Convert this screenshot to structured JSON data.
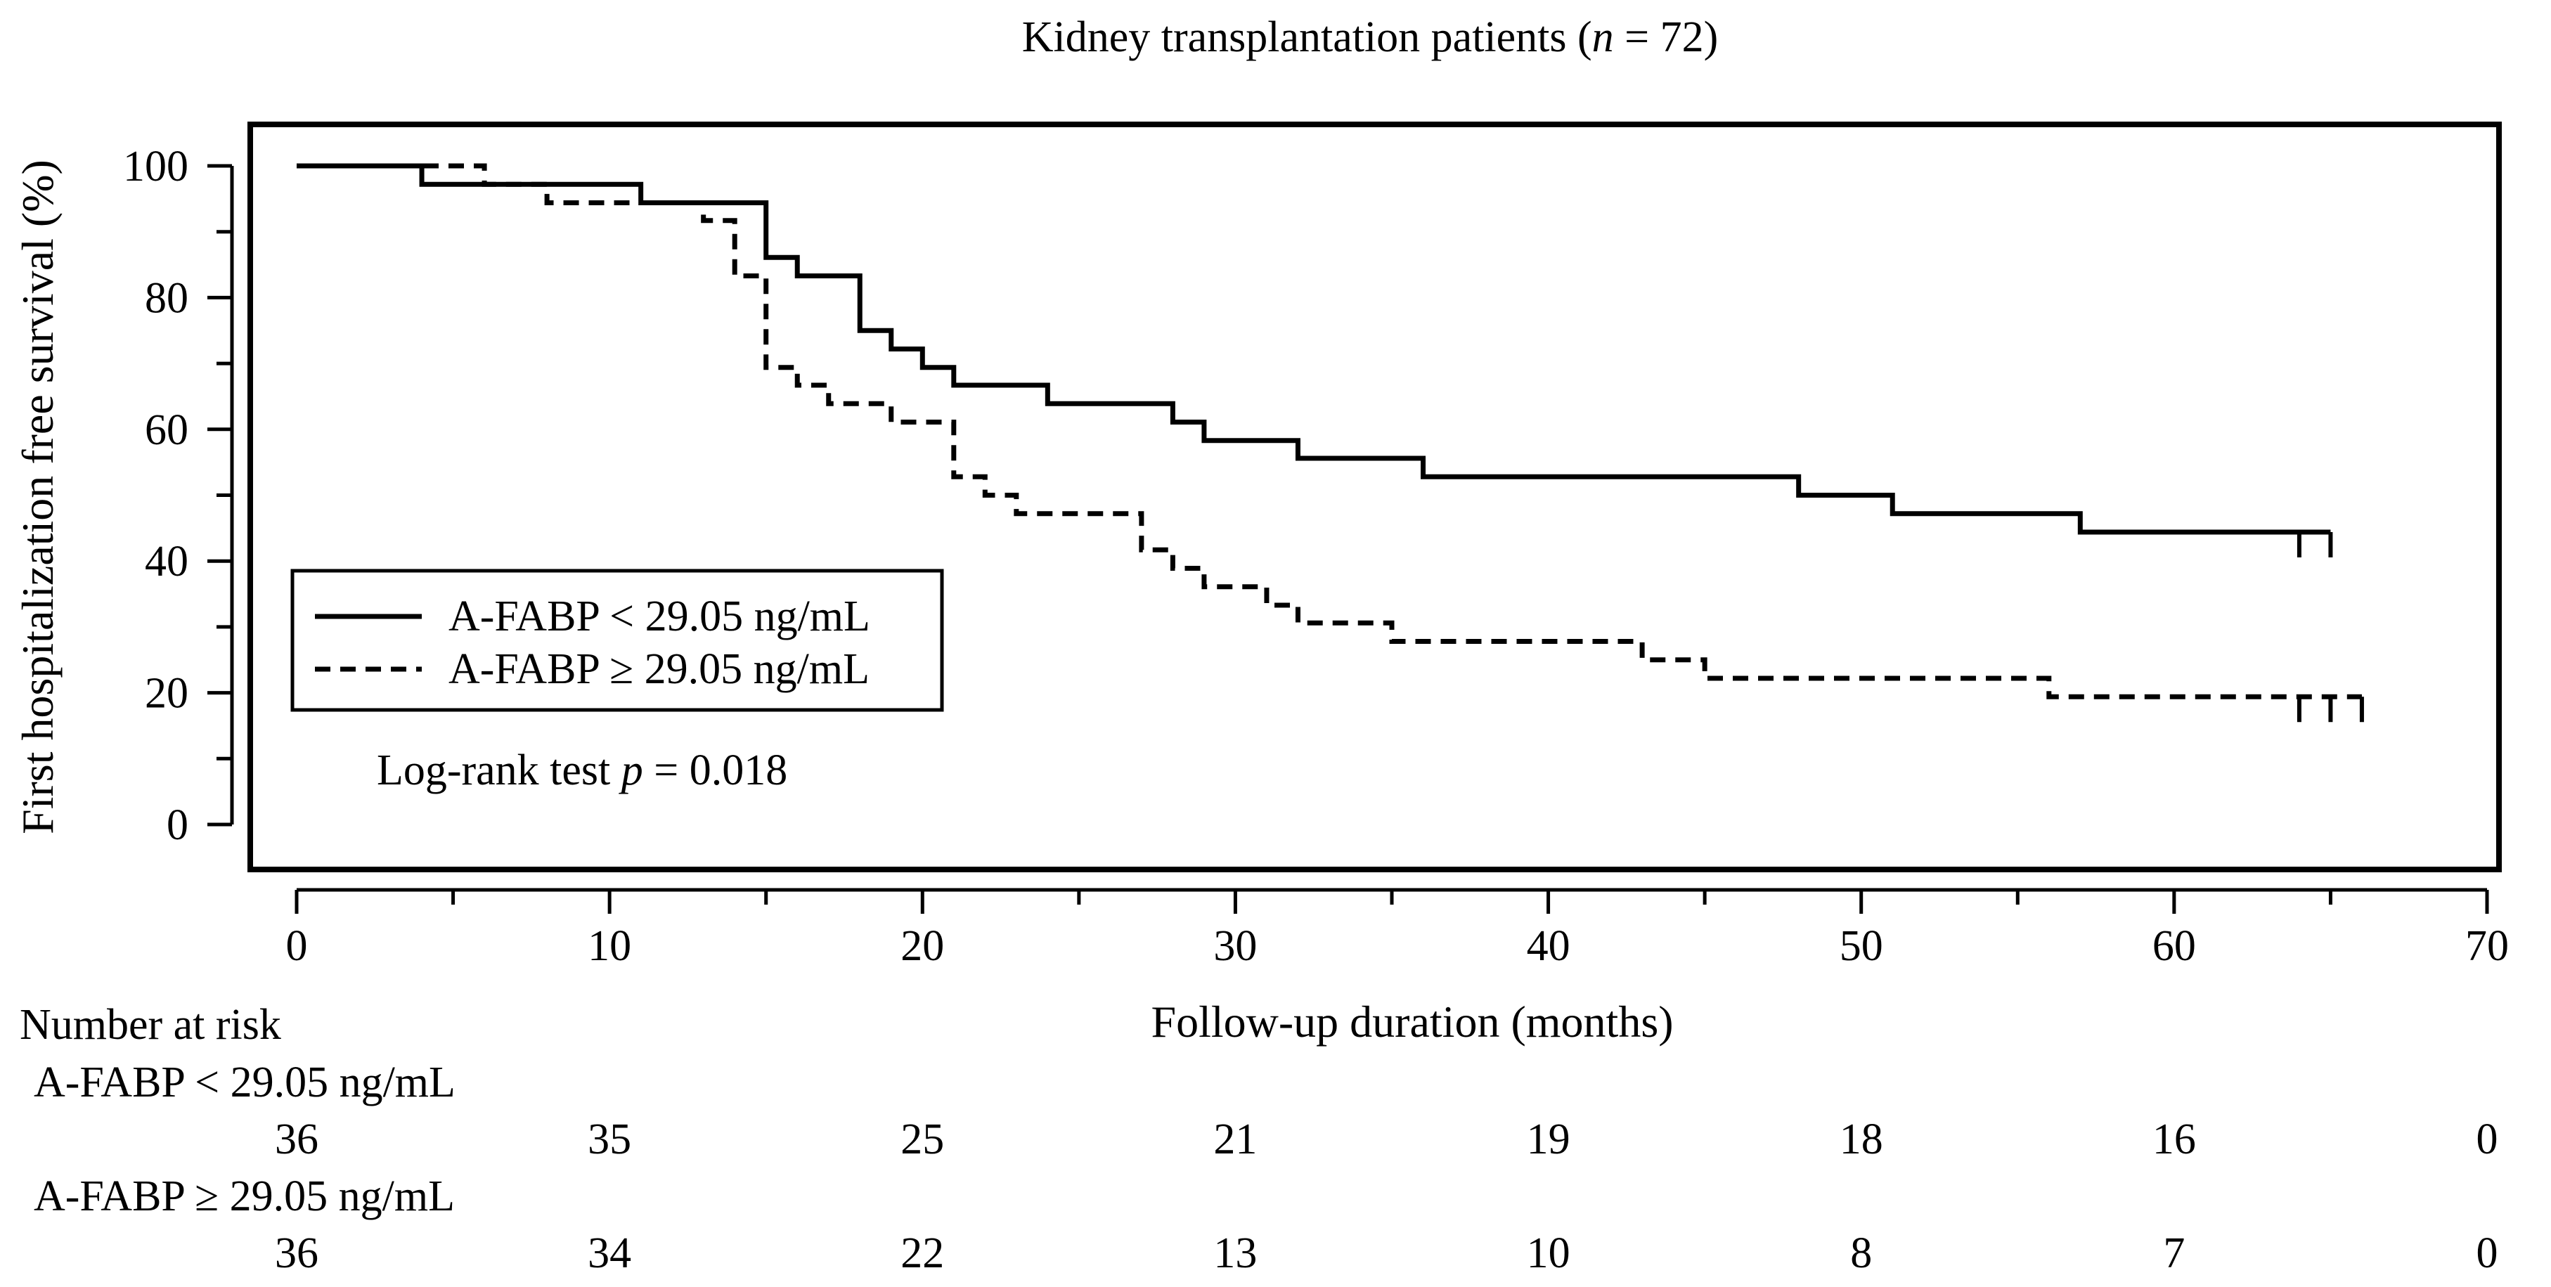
{
  "chart_data": {
    "type": "kaplan-meier",
    "title_prefix": "Kidney transplantation patients (",
    "title_n": "n",
    "title_suffix": " = 72)",
    "ylabel": "First hospitalization free survival (%)",
    "xlabel": "Follow-up duration (months)",
    "xlim": [
      0,
      70
    ],
    "ylim": [
      0,
      100
    ],
    "x_ticks": [
      0,
      10,
      20,
      30,
      40,
      50,
      60,
      70
    ],
    "y_ticks": [
      0,
      20,
      40,
      60,
      80,
      100
    ],
    "y_minor_ticks": [
      10,
      30,
      50,
      70,
      90
    ],
    "x_minor_ticks": [
      5,
      15,
      25,
      35,
      45,
      55,
      65
    ],
    "legend": {
      "position": "lower-left",
      "entries": [
        "A-FABP < 29.05 ng/mL",
        "A-FABP ≥ 29.05 ng/mL"
      ]
    },
    "annotation": {
      "prefix": "Log-rank test ",
      "p": "p",
      "suffix": " = 0.018"
    },
    "series": [
      {
        "name": "A-FABP < 29.05 ng/mL",
        "line_style": "solid",
        "steps": [
          [
            0,
            100
          ],
          [
            4,
            97.2
          ],
          [
            11,
            94.4
          ],
          [
            15,
            86.1
          ],
          [
            16,
            83.3
          ],
          [
            18,
            75.0
          ],
          [
            19,
            72.2
          ],
          [
            20,
            69.4
          ],
          [
            21,
            66.7
          ],
          [
            24,
            63.9
          ],
          [
            28,
            61.1
          ],
          [
            29,
            58.3
          ],
          [
            32,
            55.6
          ],
          [
            36,
            52.8
          ],
          [
            48,
            50.0
          ],
          [
            51,
            47.2
          ],
          [
            57,
            44.4
          ]
        ],
        "end": 65,
        "censored": [
          64,
          65
        ]
      },
      {
        "name": "A-FABP ≥ 29.05 ng/mL",
        "line_style": "dashed",
        "steps": [
          [
            0,
            100
          ],
          [
            6,
            97.2
          ],
          [
            8,
            94.4
          ],
          [
            13,
            91.7
          ],
          [
            14,
            83.3
          ],
          [
            15,
            69.4
          ],
          [
            16,
            66.7
          ],
          [
            17,
            63.9
          ],
          [
            19,
            61.1
          ],
          [
            21,
            52.8
          ],
          [
            22,
            50.0
          ],
          [
            23,
            47.2
          ],
          [
            27,
            41.7
          ],
          [
            28,
            38.9
          ],
          [
            29,
            36.1
          ],
          [
            31,
            33.3
          ],
          [
            32,
            30.6
          ],
          [
            35,
            27.8
          ],
          [
            43,
            25.0
          ],
          [
            45,
            22.2
          ],
          [
            56,
            19.4
          ]
        ],
        "end": 66,
        "censored": [
          64,
          65,
          66
        ]
      }
    ],
    "risk_table": {
      "title": "Number at risk",
      "times": [
        0,
        10,
        20,
        30,
        40,
        50,
        60,
        70
      ],
      "rows": [
        {
          "label": "A-FABP < 29.05 ng/mL",
          "counts": [
            "36",
            "35",
            "25",
            "21",
            "19",
            "18",
            "16",
            "0"
          ]
        },
        {
          "label": "A-FABP ≥ 29.05 ng/mL",
          "counts": [
            "36",
            "34",
            "22",
            "13",
            "10",
            "8",
            "7",
            "0"
          ]
        }
      ]
    }
  }
}
